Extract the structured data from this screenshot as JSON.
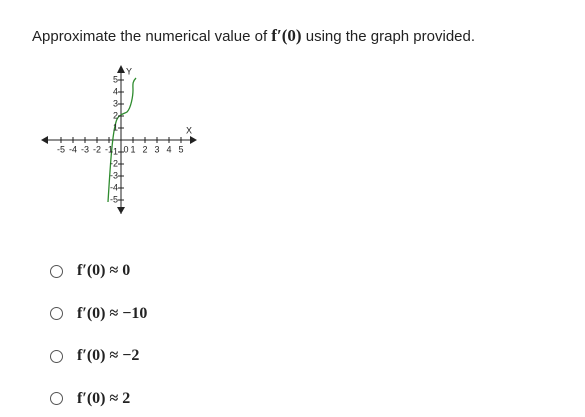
{
  "question": {
    "text_before": "Approximate the numerical value of ",
    "expression": "f′(0)",
    "text_after": " using the graph provided."
  },
  "graph": {
    "x_label": "X",
    "y_label": "Y",
    "xticks": [
      -5,
      -4,
      -3,
      -2,
      -1,
      0,
      1,
      2,
      3,
      4,
      5
    ],
    "yticks": [
      -5,
      -4,
      -3,
      -2,
      -1,
      1,
      2,
      3,
      4,
      5
    ],
    "curve_color": "#2e8b2e"
  },
  "options": [
    "f′(0) ≈ 0",
    "f′(0) ≈ −10",
    "f′(0) ≈ −2",
    "f′(0) ≈ 2"
  ]
}
